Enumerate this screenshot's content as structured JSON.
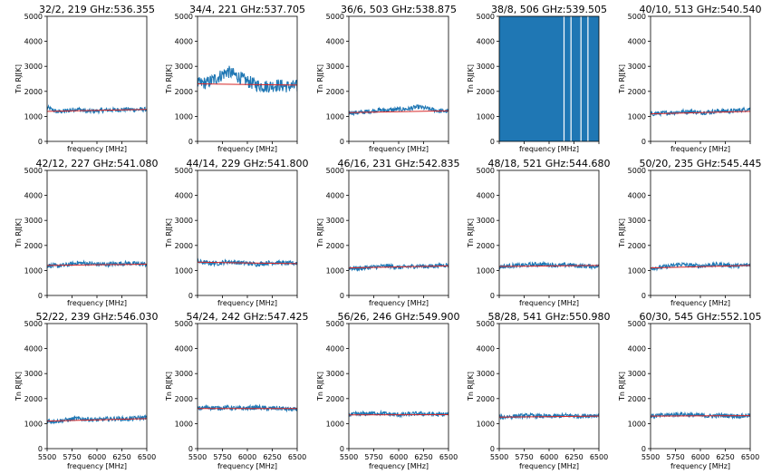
{
  "chart_data": [
    {
      "type": "line",
      "title": "32/2, 219 GHz:536.355",
      "xlabel": "frequency [MHz]",
      "ylabel": "Tn RJ[K]",
      "ylim": [
        0,
        5000
      ],
      "xlim": [
        5500,
        6500
      ],
      "x_tick_labels": false,
      "y_ticks": [
        0,
        1000,
        2000,
        3000,
        4000,
        5000
      ],
      "series": [
        {
          "color": "#1f77b4",
          "x": [
            5500,
            5600,
            5700,
            5800,
            5900,
            6000,
            6100,
            6200,
            6300,
            6400,
            6500
          ],
          "values": [
            1350,
            1180,
            1220,
            1300,
            1200,
            1220,
            1250,
            1260,
            1280,
            1270,
            1280
          ]
        },
        {
          "color": "#d62728",
          "x": [
            5500,
            6500
          ],
          "values": [
            1200,
            1280
          ]
        }
      ]
    },
    {
      "type": "line",
      "title": "34/4, 221 GHz:537.705",
      "xlabel": "frequency [MHz]",
      "ylabel": "Tn RJ[K]",
      "ylim": [
        0,
        5000
      ],
      "xlim": [
        5500,
        6500
      ],
      "x_tick_labels": false,
      "y_ticks": [
        0,
        1000,
        2000,
        3000,
        4000,
        5000
      ],
      "series": [
        {
          "color": "#1f77b4",
          "x": [
            5500,
            5600,
            5700,
            5800,
            5900,
            6000,
            6100,
            6200,
            6300,
            6400,
            6500
          ],
          "values": [
            2300,
            2350,
            2550,
            2800,
            2600,
            2400,
            2250,
            2200,
            2250,
            2200,
            2200
          ]
        },
        {
          "color": "#d62728",
          "x": [
            5500,
            6500
          ],
          "values": [
            2300,
            2250
          ]
        }
      ]
    },
    {
      "type": "line",
      "title": "36/6, 503 GHz:538.875",
      "xlabel": "frequency [MHz]",
      "ylabel": "Tn RJ[K]",
      "ylim": [
        0,
        5000
      ],
      "xlim": [
        5500,
        6500
      ],
      "x_tick_labels": false,
      "y_ticks": [
        0,
        1000,
        2000,
        3000,
        4000,
        5000
      ],
      "series": [
        {
          "color": "#1f77b4",
          "x": [
            5500,
            5600,
            5700,
            5800,
            5900,
            6000,
            6100,
            6200,
            6300,
            6400,
            6500
          ],
          "values": [
            1150,
            1150,
            1200,
            1250,
            1250,
            1280,
            1300,
            1380,
            1300,
            1220,
            1200
          ]
        },
        {
          "color": "#d62728",
          "x": [
            5500,
            6500
          ],
          "values": [
            1150,
            1220
          ]
        }
      ]
    },
    {
      "type": "line",
      "title": "38/8, 506 GHz:539.505",
      "xlabel": "frequency [MHz]",
      "ylabel": "Tn RJ[K]",
      "ylim": [
        0,
        5000
      ],
      "xlim": [
        5500,
        6500
      ],
      "x_tick_labels": false,
      "y_ticks": [
        0,
        1000,
        2000,
        3000,
        4000,
        5000
      ],
      "saturated": true,
      "gap_x": [
        6150,
        6220,
        6320,
        6390
      ],
      "series": [
        {
          "color": "#1f77b4",
          "x": [
            5500,
            6500
          ],
          "values": [
            5000,
            5000
          ]
        }
      ]
    },
    {
      "type": "line",
      "title": "40/10, 513 GHz:540.540",
      "xlabel": "frequency [MHz]",
      "ylabel": "Tn RJ[K]",
      "ylim": [
        0,
        5000
      ],
      "xlim": [
        5500,
        6500
      ],
      "x_tick_labels": false,
      "y_ticks": [
        0,
        1000,
        2000,
        3000,
        4000,
        5000
      ],
      "series": [
        {
          "color": "#1f77b4",
          "x": [
            5500,
            5600,
            5700,
            5800,
            5900,
            6000,
            6100,
            6200,
            6300,
            6400,
            6500
          ],
          "values": [
            1100,
            1120,
            1150,
            1180,
            1200,
            1150,
            1180,
            1220,
            1200,
            1250,
            1300
          ]
        },
        {
          "color": "#d62728",
          "x": [
            5500,
            6500
          ],
          "values": [
            1100,
            1200
          ]
        }
      ]
    },
    {
      "type": "line",
      "title": "42/12, 227 GHz:541.080",
      "xlabel": "frequency [MHz]",
      "ylabel": "Tn RJ[K]",
      "ylim": [
        0,
        5000
      ],
      "xlim": [
        5500,
        6500
      ],
      "x_tick_labels": false,
      "y_ticks": [
        0,
        1000,
        2000,
        3000,
        4000,
        5000
      ],
      "series": [
        {
          "color": "#1f77b4",
          "x": [
            5500,
            5600,
            5700,
            5800,
            5900,
            6000,
            6100,
            6200,
            6300,
            6400,
            6500
          ],
          "values": [
            1200,
            1180,
            1220,
            1300,
            1280,
            1250,
            1240,
            1270,
            1290,
            1260,
            1250
          ]
        },
        {
          "color": "#d62728",
          "x": [
            5500,
            6500
          ],
          "values": [
            1200,
            1250
          ]
        }
      ]
    },
    {
      "type": "line",
      "title": "44/14, 229 GHz:541.800",
      "xlabel": "frequency [MHz]",
      "ylabel": "Tn RJ[K]",
      "ylim": [
        0,
        5000
      ],
      "xlim": [
        5500,
        6500
      ],
      "x_tick_labels": false,
      "y_ticks": [
        0,
        1000,
        2000,
        3000,
        4000,
        5000
      ],
      "series": [
        {
          "color": "#1f77b4",
          "x": [
            5500,
            5600,
            5700,
            5800,
            5900,
            6000,
            6100,
            6200,
            6300,
            6400,
            6500
          ],
          "values": [
            1350,
            1300,
            1280,
            1350,
            1320,
            1280,
            1250,
            1300,
            1320,
            1280,
            1300
          ]
        },
        {
          "color": "#d62728",
          "x": [
            5500,
            6500
          ],
          "values": [
            1330,
            1270
          ]
        }
      ]
    },
    {
      "type": "line",
      "title": "46/16, 231 GHz:542.835",
      "xlabel": "frequency [MHz]",
      "ylabel": "Tn RJ[K]",
      "ylim": [
        0,
        5000
      ],
      "xlim": [
        5500,
        6500
      ],
      "x_tick_labels": false,
      "y_ticks": [
        0,
        1000,
        2000,
        3000,
        4000,
        5000
      ],
      "series": [
        {
          "color": "#1f77b4",
          "x": [
            5500,
            5600,
            5700,
            5800,
            5900,
            6000,
            6100,
            6200,
            6300,
            6400,
            6500
          ],
          "values": [
            1100,
            1080,
            1120,
            1150,
            1180,
            1120,
            1150,
            1180,
            1160,
            1200,
            1220
          ]
        },
        {
          "color": "#d62728",
          "x": [
            5500,
            6500
          ],
          "values": [
            1100,
            1180
          ]
        }
      ]
    },
    {
      "type": "line",
      "title": "48/18, 521 GHz:544.680",
      "xlabel": "frequency [MHz]",
      "ylabel": "Tn RJ[K]",
      "ylim": [
        0,
        5000
      ],
      "xlim": [
        5500,
        6500
      ],
      "x_tick_labels": false,
      "y_ticks": [
        0,
        1000,
        2000,
        3000,
        4000,
        5000
      ],
      "series": [
        {
          "color": "#1f77b4",
          "x": [
            5500,
            5600,
            5700,
            5800,
            5900,
            6000,
            6100,
            6200,
            6300,
            6400,
            6500
          ],
          "values": [
            1150,
            1180,
            1200,
            1220,
            1250,
            1230,
            1200,
            1220,
            1180,
            1170,
            1160
          ]
        },
        {
          "color": "#d62728",
          "x": [
            5500,
            6500
          ],
          "values": [
            1160,
            1200
          ]
        }
      ]
    },
    {
      "type": "line",
      "title": "50/20, 235 GHz:545.445",
      "xlabel": "frequency [MHz]",
      "ylabel": "Tn RJ[K]",
      "ylim": [
        0,
        5000
      ],
      "xlim": [
        5500,
        6500
      ],
      "x_tick_labels": false,
      "y_ticks": [
        0,
        1000,
        2000,
        3000,
        4000,
        5000
      ],
      "series": [
        {
          "color": "#1f77b4",
          "x": [
            5500,
            5600,
            5700,
            5800,
            5900,
            6000,
            6100,
            6200,
            6300,
            6400,
            6500
          ],
          "values": [
            1100,
            1120,
            1180,
            1250,
            1200,
            1180,
            1220,
            1240,
            1200,
            1180,
            1220
          ]
        },
        {
          "color": "#d62728",
          "x": [
            5500,
            6500
          ],
          "values": [
            1100,
            1200
          ]
        }
      ]
    },
    {
      "type": "line",
      "title": "52/22, 239 GHz:546.030",
      "xlabel": "frequency [MHz]",
      "ylabel": "Tn RJ[K]",
      "ylim": [
        0,
        5000
      ],
      "xlim": [
        5500,
        6500
      ],
      "x_ticks": [
        5500,
        5750,
        6000,
        6250,
        6500
      ],
      "y_ticks": [
        0,
        1000,
        2000,
        3000,
        4000,
        5000
      ],
      "series": [
        {
          "color": "#1f77b4",
          "x": [
            5500,
            5600,
            5700,
            5800,
            5900,
            6000,
            6100,
            6200,
            6300,
            6400,
            6500
          ],
          "values": [
            1100,
            1100,
            1150,
            1200,
            1180,
            1150,
            1180,
            1200,
            1180,
            1220,
            1250
          ]
        },
        {
          "color": "#d62728",
          "x": [
            5500,
            6500
          ],
          "values": [
            1100,
            1200
          ]
        }
      ]
    },
    {
      "type": "line",
      "title": "54/24, 242 GHz:547.425",
      "xlabel": "frequency [MHz]",
      "ylabel": "Tn RJ[K]",
      "ylim": [
        0,
        5000
      ],
      "xlim": [
        5500,
        6500
      ],
      "x_ticks": [
        5500,
        5750,
        6000,
        6250,
        6500
      ],
      "y_ticks": [
        0,
        1000,
        2000,
        3000,
        4000,
        5000
      ],
      "series": [
        {
          "color": "#1f77b4",
          "x": [
            5500,
            5600,
            5700,
            5800,
            5900,
            6000,
            6100,
            6200,
            6300,
            6400,
            6500
          ],
          "values": [
            1600,
            1650,
            1620,
            1650,
            1600,
            1620,
            1650,
            1600,
            1620,
            1580,
            1550
          ]
        },
        {
          "color": "#d62728",
          "x": [
            5500,
            6500
          ],
          "values": [
            1600,
            1600
          ]
        }
      ]
    },
    {
      "type": "line",
      "title": "56/26, 246 GHz:549.900",
      "xlabel": "frequency [MHz]",
      "ylabel": "Tn RJ[K]",
      "ylim": [
        0,
        5000
      ],
      "xlim": [
        5500,
        6500
      ],
      "x_ticks": [
        5500,
        5750,
        6000,
        6250,
        6500
      ],
      "y_ticks": [
        0,
        1000,
        2000,
        3000,
        4000,
        5000
      ],
      "series": [
        {
          "color": "#1f77b4",
          "x": [
            5500,
            5600,
            5700,
            5800,
            5900,
            6000,
            6100,
            6200,
            6300,
            6400,
            6500
          ],
          "values": [
            1350,
            1380,
            1400,
            1420,
            1380,
            1350,
            1370,
            1400,
            1380,
            1360,
            1380
          ]
        },
        {
          "color": "#d62728",
          "x": [
            5500,
            6500
          ],
          "values": [
            1350,
            1360
          ]
        }
      ]
    },
    {
      "type": "line",
      "title": "58/28, 541 GHz:550.980",
      "xlabel": "frequency [MHz]",
      "ylabel": "Tn RJ[K]",
      "ylim": [
        0,
        5000
      ],
      "xlim": [
        5500,
        6500
      ],
      "x_ticks": [
        5500,
        5750,
        6000,
        6250,
        6500
      ],
      "y_ticks": [
        0,
        1000,
        2000,
        3000,
        4000,
        5000
      ],
      "series": [
        {
          "color": "#1f77b4",
          "x": [
            5500,
            5600,
            5700,
            5800,
            5900,
            6000,
            6100,
            6200,
            6300,
            6400,
            6500
          ],
          "values": [
            1250,
            1280,
            1300,
            1320,
            1300,
            1280,
            1300,
            1330,
            1300,
            1320,
            1330
          ]
        },
        {
          "color": "#d62728",
          "x": [
            5500,
            6500
          ],
          "values": [
            1260,
            1300
          ]
        }
      ]
    },
    {
      "type": "line",
      "title": "60/30, 545 GHz:552.105",
      "xlabel": "frequency [MHz]",
      "ylabel": "Tn RJ[K]",
      "ylim": [
        0,
        5000
      ],
      "xlim": [
        5500,
        6500
      ],
      "x_ticks": [
        5500,
        5750,
        6000,
        6250,
        6500
      ],
      "y_ticks": [
        0,
        1000,
        2000,
        3000,
        4000,
        5000
      ],
      "series": [
        {
          "color": "#1f77b4",
          "x": [
            5500,
            5600,
            5700,
            5800,
            5900,
            6000,
            6100,
            6200,
            6300,
            6400,
            6500
          ],
          "values": [
            1300,
            1320,
            1350,
            1380,
            1350,
            1320,
            1300,
            1330,
            1320,
            1300,
            1330
          ]
        },
        {
          "color": "#d62728",
          "x": [
            5500,
            6500
          ],
          "values": [
            1300,
            1320
          ]
        }
      ]
    }
  ]
}
